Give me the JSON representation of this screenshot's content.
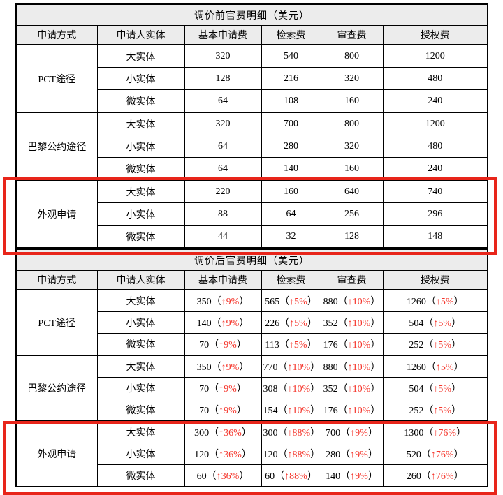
{
  "accent_colors": {
    "highlight_box_red": "#e8251a",
    "increase_text_red": "#f5352b",
    "header_background": "#ececec",
    "table_border": "#000000"
  },
  "format": {
    "open": "（",
    "close": "）"
  },
  "tables": [
    {
      "title": "调价前官费明细（美元）",
      "columns": [
        "申请方式",
        "申请人实体",
        "基本申请费",
        "检索费",
        "审查费",
        "授权费"
      ],
      "groups": [
        {
          "method": "PCT途径",
          "highlighted": false,
          "rows": [
            {
              "entity": "大实体",
              "fees": [
                {
                  "v": "320"
                },
                {
                  "v": "540"
                },
                {
                  "v": "800"
                },
                {
                  "v": "1200"
                }
              ]
            },
            {
              "entity": "小实体",
              "fees": [
                {
                  "v": "128"
                },
                {
                  "v": "216"
                },
                {
                  "v": "320"
                },
                {
                  "v": "480"
                }
              ]
            },
            {
              "entity": "微实体",
              "fees": [
                {
                  "v": "64"
                },
                {
                  "v": "108"
                },
                {
                  "v": "160"
                },
                {
                  "v": "240"
                }
              ]
            }
          ]
        },
        {
          "method": "巴黎公约途径",
          "highlighted": false,
          "rows": [
            {
              "entity": "大实体",
              "fees": [
                {
                  "v": "320"
                },
                {
                  "v": "700"
                },
                {
                  "v": "800"
                },
                {
                  "v": "1200"
                }
              ]
            },
            {
              "entity": "小实体",
              "fees": [
                {
                  "v": "64"
                },
                {
                  "v": "280"
                },
                {
                  "v": "320"
                },
                {
                  "v": "480"
                }
              ]
            },
            {
              "entity": "微实体",
              "fees": [
                {
                  "v": "64"
                },
                {
                  "v": "140"
                },
                {
                  "v": "160"
                },
                {
                  "v": "240"
                }
              ]
            }
          ]
        },
        {
          "method": "外观申请",
          "highlighted": true,
          "rows": [
            {
              "entity": "大实体",
              "fees": [
                {
                  "v": "220"
                },
                {
                  "v": "160"
                },
                {
                  "v": "640"
                },
                {
                  "v": "740"
                }
              ]
            },
            {
              "entity": "小实体",
              "fees": [
                {
                  "v": "88"
                },
                {
                  "v": "64"
                },
                {
                  "v": "256"
                },
                {
                  "v": "296"
                }
              ]
            },
            {
              "entity": "微实体",
              "fees": [
                {
                  "v": "44"
                },
                {
                  "v": "32"
                },
                {
                  "v": "128"
                },
                {
                  "v": "148"
                }
              ]
            }
          ]
        }
      ]
    },
    {
      "title": "调价后官费明细（美元）",
      "columns": [
        "申请方式",
        "申请人实体",
        "基本申请费",
        "检索费",
        "审查费",
        "授权费"
      ],
      "groups": [
        {
          "method": "PCT途径",
          "highlighted": false,
          "rows": [
            {
              "entity": "大实体",
              "fees": [
                {
                  "v": "350",
                  "up": "↑9%"
                },
                {
                  "v": "565",
                  "up": "↑5%"
                },
                {
                  "v": "880",
                  "up": "↑10%"
                },
                {
                  "v": "1260",
                  "up": "↑5%"
                }
              ]
            },
            {
              "entity": "小实体",
              "fees": [
                {
                  "v": "140",
                  "up": "↑9%"
                },
                {
                  "v": "226",
                  "up": "↑5%"
                },
                {
                  "v": "352",
                  "up": "↑10%"
                },
                {
                  "v": "504",
                  "up": "↑5%"
                }
              ]
            },
            {
              "entity": "微实体",
              "fees": [
                {
                  "v": "70",
                  "up": "↑9%"
                },
                {
                  "v": "113",
                  "up": "↑5%"
                },
                {
                  "v": "176",
                  "up": "↑10%"
                },
                {
                  "v": "252",
                  "up": "↑5%"
                }
              ]
            }
          ]
        },
        {
          "method": "巴黎公约途径",
          "highlighted": false,
          "rows": [
            {
              "entity": "大实体",
              "fees": [
                {
                  "v": "350",
                  "up": "↑9%"
                },
                {
                  "v": "770",
                  "up": "↑10%"
                },
                {
                  "v": "880",
                  "up": "↑10%"
                },
                {
                  "v": "1260",
                  "up": "↑5%"
                }
              ]
            },
            {
              "entity": "小实体",
              "fees": [
                {
                  "v": "70",
                  "up": "↑9%"
                },
                {
                  "v": "308",
                  "up": "↑10%"
                },
                {
                  "v": "352",
                  "up": "↑10%"
                },
                {
                  "v": "504",
                  "up": "↑5%"
                }
              ]
            },
            {
              "entity": "微实体",
              "fees": [
                {
                  "v": "70",
                  "up": "↑9%"
                },
                {
                  "v": "154",
                  "up": "↑10%"
                },
                {
                  "v": "176",
                  "up": "↑10%"
                },
                {
                  "v": "252",
                  "up": "↑5%"
                }
              ]
            }
          ]
        },
        {
          "method": "外观申请",
          "highlighted": true,
          "rows": [
            {
              "entity": "大实体",
              "fees": [
                {
                  "v": "300",
                  "up": "↑36%"
                },
                {
                  "v": "300",
                  "up": "↑88%"
                },
                {
                  "v": "700",
                  "up": "↑9%"
                },
                {
                  "v": "1300",
                  "up": "↑76%"
                }
              ]
            },
            {
              "entity": "小实体",
              "fees": [
                {
                  "v": "120",
                  "up": "↑36%"
                },
                {
                  "v": "120",
                  "up": "↑88%"
                },
                {
                  "v": "280",
                  "up": "↑9%"
                },
                {
                  "v": "520",
                  "up": "↑76%"
                }
              ]
            },
            {
              "entity": "微实体",
              "fees": [
                {
                  "v": "60",
                  "up": "↑36%"
                },
                {
                  "v": "60",
                  "up": "↑88%"
                },
                {
                  "v": "140",
                  "up": "↑9%"
                },
                {
                  "v": "260",
                  "up": "↑76%"
                }
              ]
            }
          ]
        }
      ]
    }
  ]
}
